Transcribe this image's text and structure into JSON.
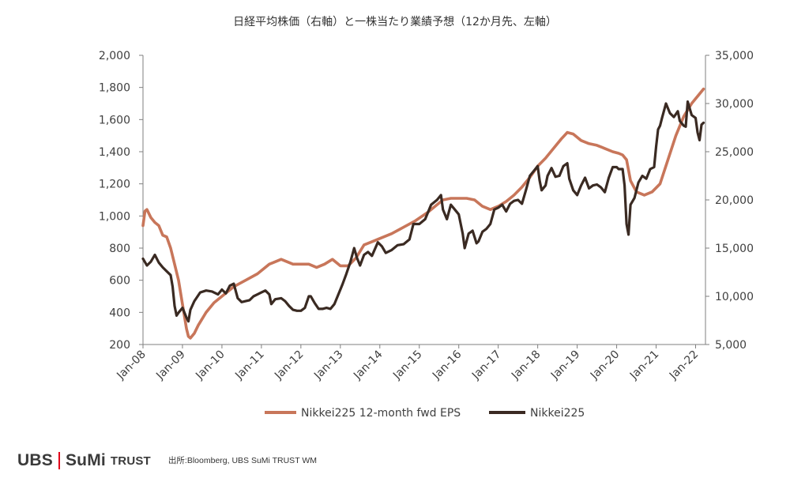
{
  "chart_data": {
    "type": "line",
    "title": "日経平均株価（右軸）と一株当たり業績予想（12か月先、左軸）",
    "x_ticks": [
      "Jan-08",
      "Jan-09",
      "Jan-10",
      "Jan-11",
      "Jan-12",
      "Jan-13",
      "Jan-14",
      "Jan-15",
      "Jan-16",
      "Jan-17",
      "Jan-18",
      "Jan-19",
      "Jan-20",
      "Jan-21",
      "Jan-22"
    ],
    "x_range": [
      2008.0,
      2022.25
    ],
    "left_axis": {
      "ticks": [
        "2,000",
        "1,800",
        "1,600",
        "1,400",
        "1,200",
        "1,000",
        "800",
        "600",
        "400",
        "200"
      ],
      "ylim": [
        200,
        2000
      ]
    },
    "right_axis": {
      "ticks": [
        "35,000",
        "30,000",
        "25,000",
        "20,000",
        "15,000",
        "10,000",
        "5,000"
      ],
      "ylim": [
        5000,
        35000
      ]
    },
    "grid": false,
    "legend_position": "bottom",
    "series": [
      {
        "name": "Nikkei225 12-month fwd EPS",
        "axis": "left",
        "color": "#c8765a",
        "x": [
          2008.0,
          2008.05,
          2008.1,
          2008.2,
          2008.3,
          2008.4,
          2008.5,
          2008.6,
          2008.7,
          2008.8,
          2008.9,
          2009.0,
          2009.1,
          2009.15,
          2009.2,
          2009.3,
          2009.4,
          2009.6,
          2009.8,
          2010.0,
          2010.3,
          2010.6,
          2010.9,
          2011.2,
          2011.3,
          2011.5,
          2011.8,
          2012.0,
          2012.2,
          2012.4,
          2012.6,
          2012.8,
          2013.0,
          2013.2,
          2013.4,
          2013.6,
          2013.8,
          2014.0,
          2014.3,
          2014.6,
          2014.9,
          2015.2,
          2015.4,
          2015.6,
          2015.8,
          2016.0,
          2016.2,
          2016.4,
          2016.6,
          2016.8,
          2017.0,
          2017.2,
          2017.4,
          2017.6,
          2017.8,
          2018.0,
          2018.2,
          2018.4,
          2018.6,
          2018.75,
          2018.9,
          2019.1,
          2019.3,
          2019.5,
          2019.7,
          2019.9,
          2020.05,
          2020.15,
          2020.25,
          2020.35,
          2020.5,
          2020.7,
          2020.9,
          2021.1,
          2021.3,
          2021.5,
          2021.7,
          2021.9,
          2022.1,
          2022.2
        ],
        "values": [
          940,
          1030,
          1040,
          990,
          960,
          940,
          880,
          870,
          800,
          700,
          600,
          450,
          300,
          250,
          240,
          270,
          320,
          400,
          460,
          500,
          560,
          600,
          640,
          700,
          710,
          730,
          700,
          700,
          700,
          680,
          700,
          730,
          690,
          690,
          740,
          820,
          840,
          860,
          890,
          930,
          970,
          1020,
          1060,
          1100,
          1110,
          1110,
          1110,
          1100,
          1060,
          1040,
          1060,
          1090,
          1130,
          1180,
          1240,
          1310,
          1360,
          1420,
          1480,
          1520,
          1510,
          1470,
          1450,
          1440,
          1420,
          1400,
          1390,
          1380,
          1350,
          1220,
          1150,
          1130,
          1150,
          1200,
          1350,
          1500,
          1620,
          1700,
          1760,
          1790
        ]
      },
      {
        "name": "Nikkei225",
        "axis": "right",
        "color": "#3a2a22",
        "x": [
          2008.0,
          2008.1,
          2008.2,
          2008.3,
          2008.4,
          2008.5,
          2008.6,
          2008.7,
          2008.75,
          2008.8,
          2008.85,
          2008.9,
          2009.0,
          2009.1,
          2009.15,
          2009.2,
          2009.3,
          2009.45,
          2009.6,
          2009.75,
          2009.9,
          2010.0,
          2010.1,
          2010.2,
          2010.3,
          2010.4,
          2010.5,
          2010.6,
          2010.7,
          2010.8,
          2010.9,
          2011.0,
          2011.1,
          2011.2,
          2011.25,
          2011.35,
          2011.5,
          2011.6,
          2011.7,
          2011.8,
          2011.9,
          2012.0,
          2012.1,
          2012.2,
          2012.25,
          2012.35,
          2012.45,
          2012.55,
          2012.65,
          2012.75,
          2012.85,
          2012.95,
          2013.05,
          2013.15,
          2013.25,
          2013.35,
          2013.42,
          2013.5,
          2013.6,
          2013.7,
          2013.8,
          2013.95,
          2014.05,
          2014.15,
          2014.3,
          2014.45,
          2014.6,
          2014.75,
          2014.85,
          2015.0,
          2015.15,
          2015.3,
          2015.45,
          2015.55,
          2015.6,
          2015.7,
          2015.8,
          2015.9,
          2016.0,
          2016.1,
          2016.15,
          2016.25,
          2016.35,
          2016.45,
          2016.5,
          2016.6,
          2016.7,
          2016.8,
          2016.9,
          2017.0,
          2017.1,
          2017.2,
          2017.3,
          2017.4,
          2017.5,
          2017.6,
          2017.7,
          2017.8,
          2017.9,
          2018.0,
          2018.05,
          2018.1,
          2018.2,
          2018.25,
          2018.35,
          2018.45,
          2018.55,
          2018.65,
          2018.75,
          2018.8,
          2018.9,
          2019.0,
          2019.1,
          2019.2,
          2019.3,
          2019.4,
          2019.5,
          2019.6,
          2019.7,
          2019.8,
          2019.9,
          2020.0,
          2020.05,
          2020.15,
          2020.2,
          2020.25,
          2020.3,
          2020.35,
          2020.45,
          2020.55,
          2020.65,
          2020.75,
          2020.85,
          2020.95,
          2021.0,
          2021.05,
          2021.1,
          2021.15,
          2021.25,
          2021.35,
          2021.45,
          2021.55,
          2021.6,
          2021.7,
          2021.75,
          2021.8,
          2021.9,
          2022.0,
          2022.05,
          2022.1,
          2022.15,
          2022.2
        ],
        "values": [
          13900,
          13200,
          13600,
          14300,
          13500,
          13000,
          12600,
          12200,
          11000,
          9000,
          8000,
          8300,
          8800,
          7800,
          7400,
          8600,
          9500,
          10400,
          10600,
          10500,
          10200,
          10700,
          10300,
          11100,
          11300,
          9800,
          9400,
          9500,
          9600,
          10000,
          10200,
          10400,
          10600,
          10200,
          9200,
          9700,
          9800,
          9500,
          9000,
          8600,
          8500,
          8500,
          8800,
          10000,
          10000,
          9300,
          8700,
          8700,
          8800,
          8700,
          9200,
          10200,
          11200,
          12300,
          13500,
          15000,
          14000,
          13200,
          14300,
          14600,
          14200,
          15600,
          15200,
          14500,
          14800,
          15300,
          15400,
          15900,
          17500,
          17500,
          18000,
          19500,
          20000,
          20500,
          19000,
          18000,
          19500,
          19000,
          18500,
          16500,
          15000,
          16500,
          16800,
          15500,
          15700,
          16700,
          17000,
          17500,
          19000,
          19200,
          19500,
          18800,
          19600,
          19900,
          20000,
          19600,
          21000,
          22500,
          23000,
          23500,
          22000,
          21000,
          21500,
          22500,
          23300,
          22400,
          22500,
          23500,
          23800,
          22200,
          21000,
          20500,
          21500,
          22300,
          21200,
          21500,
          21600,
          21300,
          20800,
          22300,
          23400,
          23400,
          23200,
          23200,
          21500,
          17500,
          16400,
          19500,
          20200,
          21800,
          22500,
          22200,
          23200,
          23400,
          25500,
          27300,
          27700,
          28500,
          30000,
          29000,
          28600,
          29200,
          28200,
          27700,
          27600,
          30200,
          28800,
          28500,
          27000,
          26200,
          27800,
          28000
        ]
      }
    ]
  },
  "footer": {
    "logo_left": "UBS",
    "logo_mid": "SuMi",
    "logo_right": "TRUST",
    "source": "出所:Bloomberg, UBS SuMi TRUST WM"
  }
}
